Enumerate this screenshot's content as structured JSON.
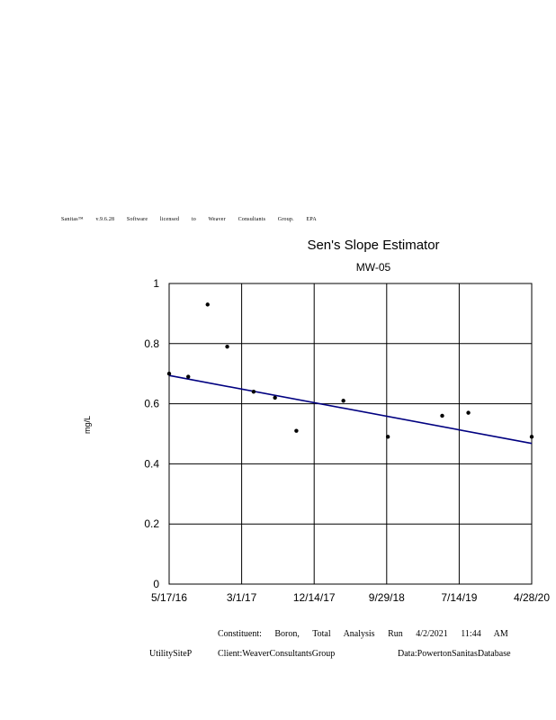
{
  "license_text": "Sanitas™ v.9.6.28 Software licensed to Weaver Consultants Group. EPA",
  "footer": {
    "line1": "Constituent: Boron, Total Analysis Run 4/2/2021 11:44 AM",
    "site": "UtilitySiteP",
    "client": "Client:WeaverConsultantsGroup",
    "data": "Data:PowertonSanitasDatabase"
  },
  "chart_data": {
    "type": "scatter",
    "title": "Sen's Slope Estimator",
    "subtitle": "MW-05",
    "xlabel": "",
    "ylabel": "mg/L",
    "xlim": [
      "2016-05-17",
      "2020-04-28"
    ],
    "ylim": [
      0,
      1
    ],
    "x_ticks": [
      "5/17/16",
      "3/1/17",
      "12/14/17",
      "9/29/18",
      "7/14/19",
      "4/28/20"
    ],
    "y_ticks": [
      "0",
      "0.2",
      "0.4",
      "0.6",
      "0.8",
      "1"
    ],
    "grid": true,
    "series": [
      {
        "points": [
          {
            "x": "2016-05-17",
            "y": 0.7
          },
          {
            "x": "2016-08-01",
            "y": 0.69
          },
          {
            "x": "2016-10-17",
            "y": 0.93
          },
          {
            "x": "2017-01-03",
            "y": 0.79
          },
          {
            "x": "2017-04-18",
            "y": 0.64
          },
          {
            "x": "2017-07-12",
            "y": 0.62
          },
          {
            "x": "2017-10-05",
            "y": 0.51
          },
          {
            "x": "2018-04-10",
            "y": 0.61
          },
          {
            "x": "2018-10-04",
            "y": 0.49
          },
          {
            "x": "2019-05-08",
            "y": 0.56
          },
          {
            "x": "2019-08-20",
            "y": 0.57
          },
          {
            "x": "2020-04-28",
            "y": 0.49
          }
        ],
        "color": "#000000"
      }
    ],
    "trend_line": {
      "start": {
        "x": "2016-05-17",
        "y": 0.694
      },
      "end": {
        "x": "2020-04-28",
        "y": 0.468
      },
      "color": "#000080"
    }
  }
}
